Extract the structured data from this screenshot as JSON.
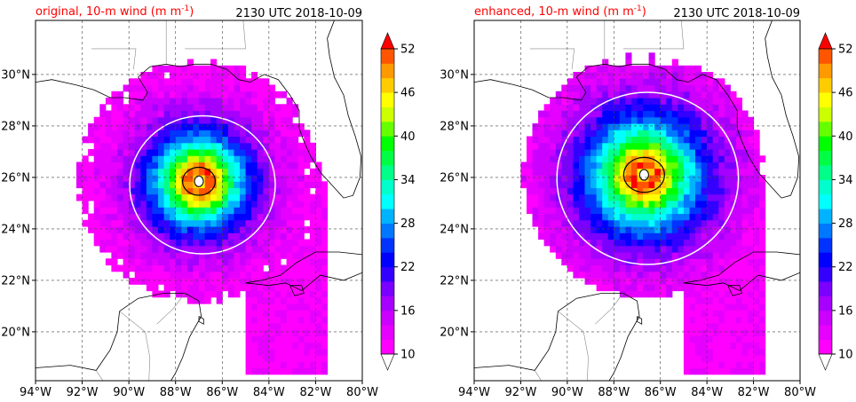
{
  "panels": [
    {
      "title": "original, 10-m wind (m m",
      "title_sup": "-1",
      "title_end": ")",
      "timestamp": "2130 UTC 2018-10-09",
      "storm": {
        "lon": -87.0,
        "lat": 25.85,
        "peak": 52,
        "spread": 1.0
      }
    },
    {
      "title": "enhanced, 10-m wind (m m",
      "title_sup": "-1",
      "title_end": ")",
      "timestamp": "2130 UTC 2018-10-09",
      "storm": {
        "lon": -86.7,
        "lat": 26.1,
        "peak": 52,
        "spread": 1.25
      }
    }
  ],
  "lon_ticks": [
    "94°W",
    "92°W",
    "90°W",
    "88°W",
    "86°W",
    "84°W",
    "82°W",
    "80°W"
  ],
  "lat_ticks": [
    "20°N",
    "22°N",
    "24°N",
    "26°N",
    "28°N",
    "30°N"
  ],
  "map_extent": {
    "lon_min": -94,
    "lon_max": -80,
    "lat_min": 18.1,
    "lat_max": 32.1
  },
  "colorbar": {
    "tick_labels": [
      "10",
      "16",
      "22",
      "28",
      "34",
      "40",
      "46",
      "52"
    ],
    "levels": [
      10,
      12,
      14,
      16,
      18,
      20,
      22,
      24,
      26,
      28,
      30,
      32,
      34,
      36,
      38,
      40,
      42,
      44,
      46,
      48,
      50,
      52
    ],
    "colors": [
      "#ff00ff",
      "#e600ff",
      "#cc00ff",
      "#a600ff",
      "#7a00ff",
      "#3300ff",
      "#0000ff",
      "#0033ff",
      "#0077ff",
      "#00b3ff",
      "#00ffff",
      "#00ffcc",
      "#00ff88",
      "#00ff44",
      "#00ff00",
      "#66ff00",
      "#ccff00",
      "#ffff00",
      "#ffcc00",
      "#ff9900",
      "#ff5500",
      "#ff0000"
    ],
    "extend": "both"
  },
  "title_color": "#ff0000"
}
